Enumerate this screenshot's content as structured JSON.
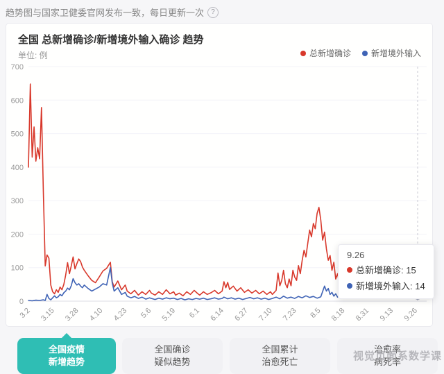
{
  "colors": {
    "accent": "#2fbeb4",
    "series_red": "#d8382b",
    "series_blue": "#3f63b5"
  },
  "page": {
    "header_note": "趋势图与国家卫健委官网发布一致，每日更新一次",
    "help_icon": "?"
  },
  "card": {
    "title": "全国 总新增确诊/新增境外输入确诊 趋势",
    "unit_label": "单位: 例",
    "legend": [
      {
        "label": "总新增确诊",
        "color": "#d8382b"
      },
      {
        "label": "新增境外输入",
        "color": "#3f63b5"
      }
    ]
  },
  "tooltip": {
    "date": "9.26",
    "row1": "总新增确诊: 15",
    "row2": "新增境外输入: 14"
  },
  "tabs": [
    {
      "line1": "全国疫情",
      "line2": "新增趋势",
      "active": true
    },
    {
      "line1": "全国确诊",
      "line2": "疑似趋势",
      "active": false
    },
    {
      "line1": "全国累计",
      "line2": "治愈死亡",
      "active": false
    },
    {
      "line1": "治愈率",
      "line2": "病死率",
      "active": false
    }
  ],
  "watermark": "视觉页面系数学课",
  "chart_data": {
    "type": "line",
    "title": "全国 总新增确诊/新增境外输入确诊 趋势",
    "ylabel": "例",
    "ylim": [
      0,
      700
    ],
    "yticks": [
      0,
      100,
      200,
      300,
      400,
      500,
      600,
      700
    ],
    "grid": true,
    "legend_position": "top-right",
    "xticklabels": [
      "3.2",
      "3.15",
      "3.28",
      "4.10",
      "4.23",
      "5.6",
      "5.19",
      "6.1",
      "6.14",
      "6.27",
      "7.10",
      "7.23",
      "8.5",
      "8.18",
      "8.31",
      "9.13",
      "9.26"
    ],
    "xtick_days": [
      1,
      14,
      27,
      40,
      53,
      66,
      79,
      92,
      105,
      118,
      131,
      144,
      157,
      170,
      183,
      196,
      209
    ],
    "day_range": [
      0,
      209
    ],
    "hover": {
      "day": 209,
      "label": "9.26",
      "values": [
        15,
        14
      ]
    },
    "series": [
      {
        "name": "总新增确诊",
        "color": "#d8382b",
        "points": [
          [
            0,
            400
          ],
          [
            1,
            648
          ],
          [
            2,
            430
          ],
          [
            3,
            520
          ],
          [
            4,
            418
          ],
          [
            5,
            458
          ],
          [
            6,
            425
          ],
          [
            7,
            578
          ],
          [
            8,
            325
          ],
          [
            9,
            105
          ],
          [
            10,
            138
          ],
          [
            11,
            128
          ],
          [
            12,
            48
          ],
          [
            13,
            28
          ],
          [
            14,
            22
          ],
          [
            15,
            34
          ],
          [
            16,
            26
          ],
          [
            17,
            42
          ],
          [
            18,
            34
          ],
          [
            19,
            50
          ],
          [
            20,
            78
          ],
          [
            21,
            115
          ],
          [
            22,
            82
          ],
          [
            23,
            105
          ],
          [
            24,
            132
          ],
          [
            25,
            96
          ],
          [
            26,
            112
          ],
          [
            27,
            126
          ],
          [
            28,
            118
          ],
          [
            29,
            102
          ],
          [
            30,
            92
          ],
          [
            32,
            76
          ],
          [
            34,
            62
          ],
          [
            36,
            55
          ],
          [
            38,
            72
          ],
          [
            40,
            90
          ],
          [
            42,
            98
          ],
          [
            44,
            116
          ],
          [
            45,
            58
          ],
          [
            46,
            42
          ],
          [
            48,
            60
          ],
          [
            50,
            34
          ],
          [
            52,
            48
          ],
          [
            53,
            30
          ],
          [
            55,
            22
          ],
          [
            57,
            32
          ],
          [
            59,
            18
          ],
          [
            61,
            28
          ],
          [
            63,
            20
          ],
          [
            65,
            32
          ],
          [
            66,
            24
          ],
          [
            68,
            18
          ],
          [
            70,
            28
          ],
          [
            72,
            20
          ],
          [
            74,
            34
          ],
          [
            76,
            22
          ],
          [
            78,
            28
          ],
          [
            79,
            18
          ],
          [
            81,
            24
          ],
          [
            83,
            16
          ],
          [
            85,
            28
          ],
          [
            87,
            20
          ],
          [
            89,
            32
          ],
          [
            91,
            22
          ],
          [
            92,
            18
          ],
          [
            94,
            28
          ],
          [
            96,
            20
          ],
          [
            98,
            25
          ],
          [
            100,
            32
          ],
          [
            102,
            22
          ],
          [
            104,
            30
          ],
          [
            105,
            58
          ],
          [
            106,
            40
          ],
          [
            107,
            56
          ],
          [
            108,
            35
          ],
          [
            110,
            45
          ],
          [
            112,
            30
          ],
          [
            114,
            40
          ],
          [
            116,
            26
          ],
          [
            118,
            34
          ],
          [
            120,
            24
          ],
          [
            122,
            32
          ],
          [
            124,
            22
          ],
          [
            126,
            30
          ],
          [
            128,
            20
          ],
          [
            130,
            28
          ],
          [
            131,
            20
          ],
          [
            133,
            32
          ],
          [
            134,
            84
          ],
          [
            135,
            46
          ],
          [
            136,
            62
          ],
          [
            137,
            92
          ],
          [
            138,
            52
          ],
          [
            139,
            40
          ],
          [
            140,
            66
          ],
          [
            141,
            46
          ],
          [
            142,
            92
          ],
          [
            143,
            72
          ],
          [
            144,
            62
          ],
          [
            145,
            106
          ],
          [
            146,
            82
          ],
          [
            147,
            122
          ],
          [
            148,
            152
          ],
          [
            149,
            132
          ],
          [
            150,
            172
          ],
          [
            151,
            212
          ],
          [
            152,
            192
          ],
          [
            153,
            232
          ],
          [
            154,
            216
          ],
          [
            155,
            262
          ],
          [
            156,
            280
          ],
          [
            157,
            242
          ],
          [
            158,
            182
          ],
          [
            159,
            206
          ],
          [
            160,
            156
          ],
          [
            161,
            122
          ],
          [
            162,
            136
          ],
          [
            163,
            92
          ],
          [
            164,
            116
          ],
          [
            165,
            66
          ],
          [
            166,
            82
          ],
          [
            167,
            52
          ],
          [
            168,
            72
          ],
          [
            169,
            46
          ],
          [
            170,
            62
          ],
          [
            172,
            50
          ],
          [
            174,
            76
          ],
          [
            176,
            56
          ],
          [
            178,
            82
          ],
          [
            180,
            62
          ],
          [
            182,
            52
          ],
          [
            183,
            72
          ],
          [
            185,
            46
          ],
          [
            187,
            62
          ],
          [
            189,
            42
          ],
          [
            191,
            56
          ],
          [
            193,
            36
          ],
          [
            195,
            52
          ],
          [
            196,
            42
          ],
          [
            198,
            62
          ],
          [
            200,
            36
          ],
          [
            202,
            76
          ],
          [
            204,
            46
          ],
          [
            205,
            70
          ],
          [
            206,
            40
          ],
          [
            207,
            56
          ],
          [
            208,
            28
          ],
          [
            209,
            15
          ]
        ]
      },
      {
        "name": "新增境外输入",
        "color": "#3f63b5",
        "points": [
          [
            0,
            2
          ],
          [
            2,
            1
          ],
          [
            4,
            3
          ],
          [
            6,
            2
          ],
          [
            8,
            4
          ],
          [
            9,
            2
          ],
          [
            10,
            20
          ],
          [
            11,
            8
          ],
          [
            12,
            4
          ],
          [
            13,
            10
          ],
          [
            14,
            16
          ],
          [
            15,
            10
          ],
          [
            16,
            13
          ],
          [
            17,
            20
          ],
          [
            18,
            16
          ],
          [
            19,
            25
          ],
          [
            20,
            30
          ],
          [
            21,
            39
          ],
          [
            22,
            34
          ],
          [
            23,
            46
          ],
          [
            24,
            67
          ],
          [
            25,
            55
          ],
          [
            26,
            48
          ],
          [
            27,
            52
          ],
          [
            28,
            45
          ],
          [
            29,
            40
          ],
          [
            30,
            48
          ],
          [
            32,
            38
          ],
          [
            34,
            30
          ],
          [
            36,
            36
          ],
          [
            38,
            42
          ],
          [
            40,
            52
          ],
          [
            42,
            48
          ],
          [
            44,
            100
          ],
          [
            45,
            54
          ],
          [
            46,
            30
          ],
          [
            48,
            40
          ],
          [
            50,
            20
          ],
          [
            52,
            26
          ],
          [
            53,
            15
          ],
          [
            55,
            10
          ],
          [
            57,
            14
          ],
          [
            59,
            8
          ],
          [
            61,
            12
          ],
          [
            63,
            6
          ],
          [
            65,
            10
          ],
          [
            66,
            8
          ],
          [
            68,
            5
          ],
          [
            70,
            9
          ],
          [
            72,
            6
          ],
          [
            74,
            10
          ],
          [
            76,
            7
          ],
          [
            78,
            9
          ],
          [
            80,
            5
          ],
          [
            82,
            8
          ],
          [
            84,
            4
          ],
          [
            86,
            7
          ],
          [
            88,
            5
          ],
          [
            90,
            8
          ],
          [
            92,
            6
          ],
          [
            94,
            9
          ],
          [
            96,
            5
          ],
          [
            98,
            7
          ],
          [
            100,
            10
          ],
          [
            102,
            6
          ],
          [
            104,
            8
          ],
          [
            105,
            12
          ],
          [
            107,
            7
          ],
          [
            109,
            10
          ],
          [
            111,
            6
          ],
          [
            113,
            9
          ],
          [
            115,
            5
          ],
          [
            117,
            8
          ],
          [
            119,
            11
          ],
          [
            121,
            7
          ],
          [
            123,
            10
          ],
          [
            125,
            6
          ],
          [
            127,
            9
          ],
          [
            129,
            5
          ],
          [
            131,
            8
          ],
          [
            133,
            12
          ],
          [
            135,
            7
          ],
          [
            137,
            15
          ],
          [
            139,
            9
          ],
          [
            141,
            12
          ],
          [
            143,
            8
          ],
          [
            145,
            14
          ],
          [
            147,
            10
          ],
          [
            149,
            16
          ],
          [
            151,
            11
          ],
          [
            153,
            14
          ],
          [
            155,
            9
          ],
          [
            157,
            13
          ],
          [
            159,
            45
          ],
          [
            160,
            30
          ],
          [
            161,
            38
          ],
          [
            162,
            20
          ],
          [
            163,
            26
          ],
          [
            164,
            15
          ],
          [
            165,
            22
          ],
          [
            166,
            12
          ],
          [
            168,
            18
          ],
          [
            170,
            28
          ],
          [
            172,
            14
          ],
          [
            174,
            20
          ],
          [
            176,
            12
          ],
          [
            178,
            22
          ],
          [
            180,
            15
          ],
          [
            182,
            25
          ],
          [
            183,
            18
          ],
          [
            185,
            12
          ],
          [
            187,
            20
          ],
          [
            189,
            10
          ],
          [
            191,
            16
          ],
          [
            193,
            22
          ],
          [
            195,
            12
          ],
          [
            197,
            18
          ],
          [
            199,
            10
          ],
          [
            201,
            15
          ],
          [
            203,
            20
          ],
          [
            205,
            12
          ],
          [
            207,
            16
          ],
          [
            209,
            14
          ]
        ]
      }
    ]
  }
}
